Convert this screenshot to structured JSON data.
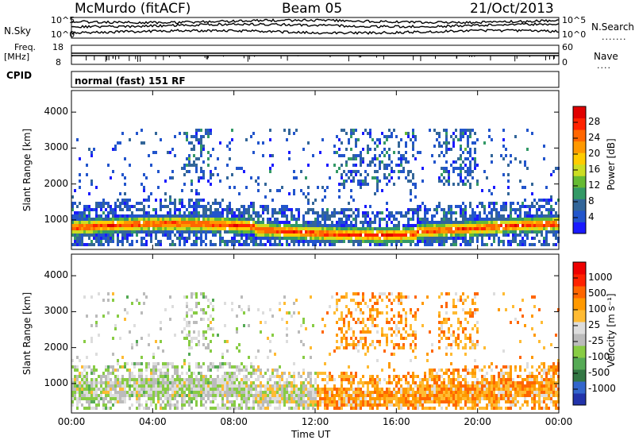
{
  "header": {
    "station": "McMurdo (fitACF)",
    "beam": "Beam 05",
    "date": "21/Oct/2013"
  },
  "top_panels": {
    "nsky_label": "N.Sky",
    "nsky_ticks": [
      "10^5",
      "10^0"
    ],
    "nsearch_label": "N.Search",
    "nsearch_ticks": [
      "10^5",
      "10^0"
    ],
    "freq_label": "Freq.",
    "freq_unit": "[MHz]",
    "freq_ticks": [
      "18",
      "8"
    ],
    "nave_label": "Nave",
    "nave_ticks": [
      "60",
      "0"
    ],
    "cpid_label": "CPID",
    "cpid_text": "normal (fast) 151 RF"
  },
  "chart_data": [
    {
      "type": "heatmap",
      "name": "power",
      "ylabel": "Slant Range [km]",
      "ylim": [
        180,
        4600
      ],
      "yticks": [
        "1000",
        "2000",
        "3000",
        "4000"
      ],
      "xlabel": "Time UT",
      "xlim": [
        0,
        24
      ],
      "xticks": [
        "00:00",
        "04:00",
        "08:00",
        "12:00",
        "16:00",
        "20:00",
        "00:00"
      ],
      "colorbar_label": "Power [dB]",
      "colorbar_ticks": [
        "28",
        "24",
        "20",
        "16",
        "12",
        "8",
        "4"
      ],
      "colorscale": [
        "#1a1aff",
        "#2255cc",
        "#336699",
        "#339966",
        "#66bb33",
        "#ccdd22",
        "#ffcc00",
        "#ff9900",
        "#ff6600",
        "#ff2200",
        "#e00000"
      ]
    },
    {
      "type": "heatmap",
      "name": "velocity",
      "ylabel": "Slant Range [km]",
      "ylim": [
        180,
        4600
      ],
      "yticks": [
        "1000",
        "2000",
        "3000",
        "4000"
      ],
      "xlabel": "Time UT",
      "xlim": [
        0,
        24
      ],
      "xticks": [
        "00:00",
        "04:00",
        "08:00",
        "12:00",
        "16:00",
        "20:00",
        "00:00"
      ],
      "colorbar_label": "Velocity [m s⁻¹]",
      "colorbar_ticks": [
        "1000",
        "500",
        "100",
        "25",
        "-25",
        "-100",
        "-500",
        "-1000"
      ],
      "colorscale": [
        "#2233aa",
        "#3366cc",
        "#337744",
        "#55aa55",
        "#88cc44",
        "#bbbbbb",
        "#dddddd",
        "#ffbb33",
        "#ff9900",
        "#ff6600",
        "#ff2200",
        "#ee0000"
      ]
    }
  ]
}
